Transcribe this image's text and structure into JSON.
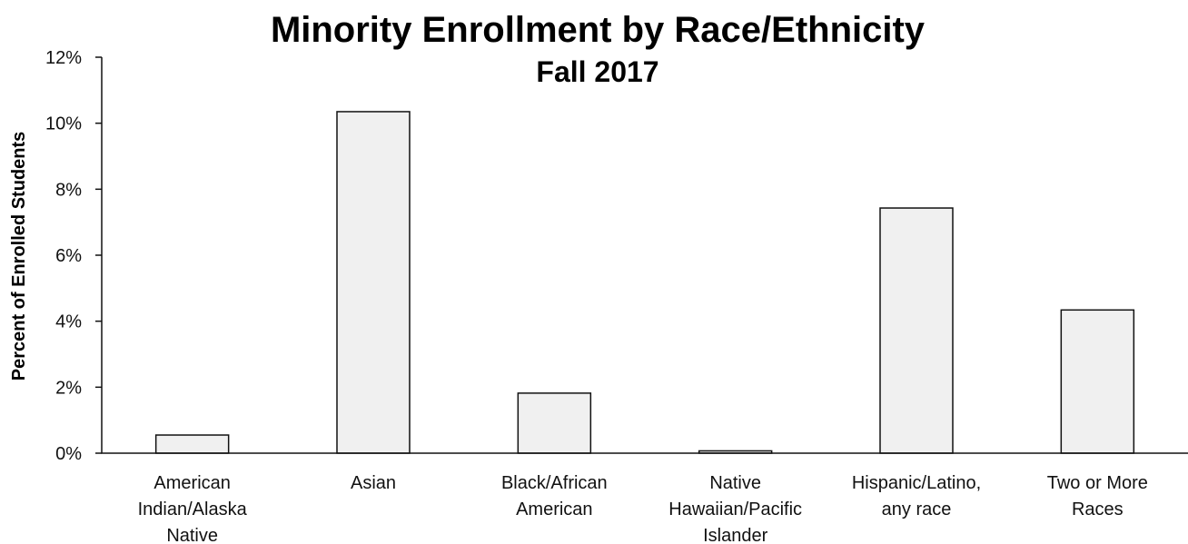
{
  "chart_data": {
    "type": "bar",
    "title": "Minority Enrollment by Race/Ethnicity",
    "subtitle": "Fall 2017",
    "xlabel": "",
    "ylabel": "Percent of Enrolled Students",
    "ylim": [
      0,
      12
    ],
    "yticks": [
      0,
      2,
      4,
      6,
      8,
      10,
      12
    ],
    "ytick_labels": [
      "0%",
      "2%",
      "4%",
      "6%",
      "8%",
      "10%",
      "12%"
    ],
    "grid": false,
    "categories": [
      [
        "American",
        "Indian/Alaska",
        "Native"
      ],
      [
        "Asian"
      ],
      [
        "Black/African",
        "American"
      ],
      [
        "Native",
        "Hawaiian/Pacific",
        "Islander"
      ],
      [
        "Hispanic/Latino,",
        "any race"
      ],
      [
        "Two or More",
        "Races"
      ]
    ],
    "values": [
      0.55,
      10.35,
      1.82,
      0.07,
      7.43,
      4.34
    ],
    "colors": {
      "bar_fill": "#f0f0f0",
      "bar_stroke": "#111111"
    }
  }
}
